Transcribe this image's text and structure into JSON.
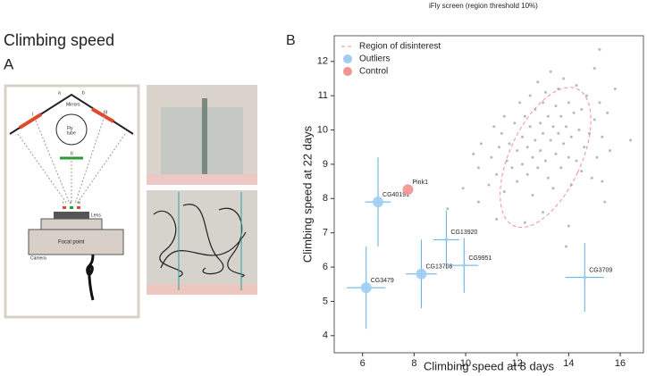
{
  "header": {
    "suptitle": "iFly screen (region threshold 10%)",
    "title": "Climbing speed",
    "panel_a": "A",
    "panel_b": "B"
  },
  "panel_a": {
    "labels": {
      "a": "a",
      "b": "b",
      "mirrors": "Mirrors",
      "tube": "Fly\ntube",
      "i": "I",
      "ii": "II",
      "iii": "III",
      "lens": "Lens",
      "focal": "Focal point",
      "camera": "Camera",
      "ii2": "II",
      "i2": "I",
      "iii2": "III"
    }
  },
  "chart_data": {
    "type": "scatter",
    "xlabel": "Climbing speed at 8 days",
    "ylabel": "Climbing speed at 22 days",
    "xlim": [
      4.9,
      16.9
    ],
    "ylim": [
      3.5,
      12.75
    ],
    "xticks": [
      6,
      8,
      10,
      12,
      14,
      16
    ],
    "yticks": [
      4,
      5,
      6,
      7,
      8,
      9,
      10,
      11,
      12
    ],
    "legend": "upper left",
    "region": {
      "name": "Region of disinterest",
      "color": "#f09090",
      "center": [
        13.1,
        9.2
      ],
      "semi_axes": [
        1.38,
        2.2
      ],
      "angle": 25
    },
    "background": {
      "color": "#b8b8b8",
      "x": [
        10.3,
        10.5,
        10.6,
        10.9,
        11,
        11.1,
        11.2,
        11.3,
        11.4,
        11.5,
        11.5,
        11.6,
        11.7,
        11.8,
        11.9,
        12,
        12,
        12.1,
        12.2,
        12.2,
        12.3,
        12.4,
        12.4,
        12.5,
        12.5,
        12.6,
        12.6,
        12.7,
        12.7,
        12.8,
        12.8,
        12.9,
        12.9,
        13,
        13,
        13,
        13.1,
        13.1,
        13.2,
        13.2,
        13.3,
        13.3,
        13.4,
        13.4,
        13.5,
        13.5,
        13.6,
        13.6,
        13.7,
        13.7,
        13.8,
        13.8,
        13.9,
        14,
        14,
        14.1,
        14.1,
        14.2,
        14.3,
        14.3,
        14.4,
        14.5,
        14.5,
        14.6,
        14.7,
        14.8,
        14.9,
        15,
        15,
        15.1,
        15.2,
        15.3,
        15.4,
        15.5,
        15.6,
        15.8,
        16.4,
        15.2,
        9.3,
        9.9,
        10.5,
        12.3,
        11.2,
        15.3,
        14,
        13.9
      ],
      "y": [
        9.3,
        8.9,
        9.6,
        8.4,
        9.2,
        10.1,
        8.7,
        9.5,
        9.9,
        8.2,
        10.4,
        9.1,
        9.6,
        8.9,
        10.2,
        9.4,
        8.5,
        10.8,
        9.8,
        9,
        10.4,
        8.7,
        9.5,
        11,
        10.1,
        9.2,
        8.1,
        10.6,
        9.7,
        11.4,
        8.9,
        10.2,
        9.4,
        10.8,
        9.9,
        7.6,
        11.1,
        9.1,
        10.4,
        8.6,
        9.7,
        11.7,
        10.1,
        8.3,
        10.7,
        9.3,
        11.2,
        9.9,
        8.9,
        10.4,
        9.6,
        11.5,
        10.1,
        9.2,
        10.8,
        8.4,
        9.8,
        10.5,
        9.1,
        11.3,
        10,
        8.8,
        10.6,
        9.5,
        11,
        9.9,
        8.6,
        10.3,
        11.8,
        9.2,
        10.8,
        9.8,
        7.9,
        10.5,
        9.4,
        11.2,
        9.7,
        12.35,
        7.7,
        8.3,
        7.9,
        7.3,
        7.4,
        8.5,
        7.2,
        6.6
      ]
    },
    "series": [
      {
        "name": "Outliers",
        "color": "#9fcdf2",
        "error_color": "#5aaee0",
        "labels": [
          "CG40191",
          "CG13920",
          "CG13708",
          "CG9951",
          "CG3479",
          "CG3709"
        ],
        "x": [
          6.6,
          9.25,
          8.28,
          9.94,
          6.14,
          14.62
        ],
        "y": [
          7.9,
          6.8,
          5.8,
          6.05,
          5.4,
          5.7
        ],
        "sizes": [
          6,
          2,
          6,
          2,
          6,
          2
        ],
        "xerr": [
          0.5,
          0.5,
          0.6,
          0.55,
          0.75,
          0.75
        ],
        "yerr": [
          1.3,
          0.85,
          1,
          0.8,
          1.2,
          1
        ]
      },
      {
        "name": "Control",
        "color": "#f29494",
        "labels": [
          "Pink1"
        ],
        "x": [
          7.76
        ],
        "y": [
          8.26
        ],
        "sizes": [
          6
        ],
        "xerr": [],
        "yerr": []
      }
    ]
  }
}
